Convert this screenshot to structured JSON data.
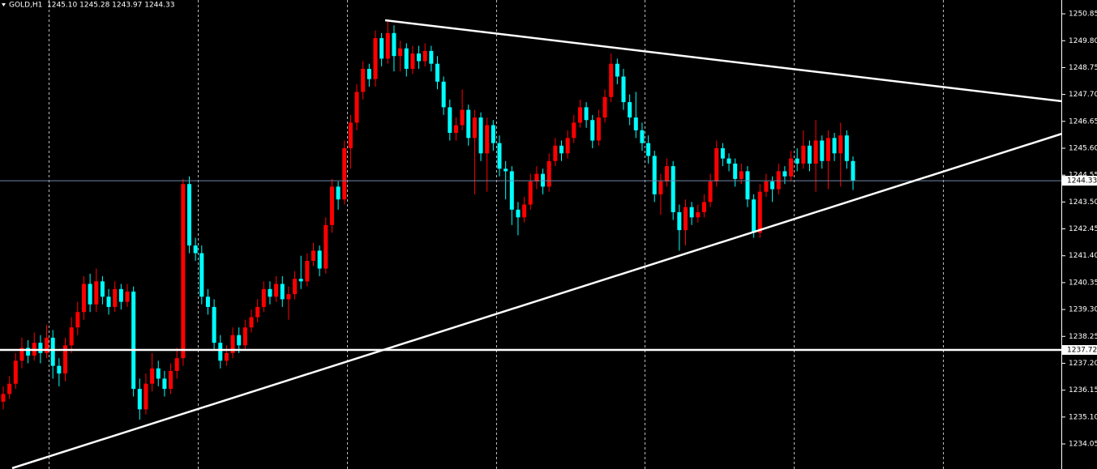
{
  "chart_data": {
    "type": "candlestick",
    "symbol": "GOLD,H1",
    "header_values": "1245.10 1245.28 1243.97 1244.33",
    "up_color": "#ff0000",
    "down_color": "#00ffff",
    "ylim": [
      1233.07,
      1251.39
    ],
    "yticks": [
      1250.85,
      {
        "value": 1249.8,
        "label": "1249.80"
      },
      1248.75,
      {
        "value": 1247.7,
        "label": "1247.70"
      },
      1246.65,
      {
        "value": 1245.6,
        "label": "1245.60"
      },
      1244.55,
      {
        "value": 1243.5,
        "label": "1243.50"
      },
      1242.45,
      {
        "value": 1241.4,
        "label": "1241.40"
      },
      1240.35,
      {
        "value": 1239.3,
        "label": "1239.30"
      },
      1238.25,
      {
        "value": 1237.2,
        "label": "1237.20"
      },
      1236.15,
      {
        "value": 1235.1,
        "label": "1235.10"
      },
      1234.05
    ],
    "current_price": 1244.33,
    "level": 1237.72,
    "ohlc": [
      [
        1235.7,
        1236.3,
        1235.4,
        1236.0
      ],
      [
        1236.0,
        1236.7,
        1235.8,
        1236.4
      ],
      [
        1236.4,
        1237.6,
        1236.2,
        1237.3
      ],
      [
        1237.3,
        1238.2,
        1237.0,
        1237.8
      ],
      [
        1237.8,
        1238.1,
        1237.2,
        1237.5
      ],
      [
        1237.5,
        1238.4,
        1237.3,
        1238.0
      ],
      [
        1238.0,
        1238.3,
        1237.2,
        1237.6
      ],
      [
        1237.6,
        1238.7,
        1237.4,
        1238.2
      ],
      [
        1238.2,
        1238.5,
        1236.6,
        1237.1
      ],
      [
        1237.1,
        1237.4,
        1236.3,
        1236.8
      ],
      [
        1236.8,
        1238.2,
        1236.5,
        1237.9
      ],
      [
        1237.9,
        1239.0,
        1237.6,
        1238.6
      ],
      [
        1238.6,
        1239.6,
        1238.3,
        1239.2
      ],
      [
        1239.2,
        1240.6,
        1238.9,
        1240.3
      ],
      [
        1240.3,
        1240.7,
        1239.2,
        1239.5
      ],
      [
        1239.5,
        1240.9,
        1239.2,
        1240.4
      ],
      [
        1240.4,
        1240.6,
        1239.5,
        1239.8
      ],
      [
        1239.8,
        1240.1,
        1239.1,
        1239.4
      ],
      [
        1239.4,
        1240.4,
        1239.2,
        1240.1
      ],
      [
        1240.1,
        1240.3,
        1239.3,
        1239.6
      ],
      [
        1239.6,
        1240.3,
        1239.4,
        1240.0
      ],
      [
        1240.0,
        1240.2,
        1235.9,
        1236.2
      ],
      [
        1236.2,
        1236.6,
        1235.0,
        1235.4
      ],
      [
        1235.4,
        1236.8,
        1235.2,
        1236.4
      ],
      [
        1236.4,
        1237.6,
        1236.1,
        1237.0
      ],
      [
        1237.0,
        1237.3,
        1236.3,
        1236.6
      ],
      [
        1236.6,
        1236.9,
        1235.9,
        1236.2
      ],
      [
        1236.2,
        1237.2,
        1236.0,
        1236.9
      ],
      [
        1236.9,
        1237.8,
        1236.6,
        1237.4
      ],
      [
        1237.4,
        1244.4,
        1237.1,
        1244.2
      ],
      [
        1244.2,
        1244.5,
        1241.5,
        1241.8
      ],
      [
        1241.8,
        1242.1,
        1241.2,
        1241.5
      ],
      [
        1241.5,
        1241.8,
        1239.5,
        1239.8
      ],
      [
        1239.8,
        1240.1,
        1239.1,
        1239.4
      ],
      [
        1239.4,
        1239.7,
        1237.7,
        1238.0
      ],
      [
        1238.0,
        1238.3,
        1237.0,
        1237.3
      ],
      [
        1237.3,
        1237.9,
        1237.1,
        1237.6
      ],
      [
        1237.6,
        1238.6,
        1237.4,
        1238.3
      ],
      [
        1238.3,
        1238.6,
        1237.6,
        1237.9
      ],
      [
        1237.9,
        1238.9,
        1237.7,
        1238.6
      ],
      [
        1238.6,
        1239.3,
        1238.4,
        1239.0
      ],
      [
        1239.0,
        1239.7,
        1238.8,
        1239.4
      ],
      [
        1239.4,
        1240.4,
        1239.2,
        1240.1
      ],
      [
        1240.1,
        1240.4,
        1239.5,
        1239.8
      ],
      [
        1239.8,
        1240.6,
        1239.6,
        1240.3
      ],
      [
        1240.3,
        1240.6,
        1239.4,
        1239.7
      ],
      [
        1239.7,
        1240.2,
        1238.9,
        1239.9
      ],
      [
        1239.9,
        1240.8,
        1239.7,
        1240.5
      ],
      [
        1240.5,
        1241.4,
        1240.1,
        1240.4
      ],
      [
        1240.4,
        1241.5,
        1240.2,
        1241.2
      ],
      [
        1241.2,
        1241.9,
        1241.0,
        1241.6
      ],
      [
        1241.6,
        1241.8,
        1240.6,
        1240.9
      ],
      [
        1240.9,
        1242.9,
        1240.7,
        1242.6
      ],
      [
        1242.6,
        1244.4,
        1242.3,
        1244.1
      ],
      [
        1244.1,
        1244.3,
        1243.2,
        1243.6
      ],
      [
        1243.6,
        1245.9,
        1243.4,
        1245.6
      ],
      [
        1245.6,
        1246.9,
        1244.8,
        1246.6
      ],
      [
        1246.6,
        1248.1,
        1246.3,
        1247.8
      ],
      [
        1247.8,
        1249.0,
        1247.5,
        1248.7
      ],
      [
        1248.7,
        1248.9,
        1248.0,
        1248.3
      ],
      [
        1248.3,
        1250.2,
        1248.0,
        1249.9
      ],
      [
        1249.9,
        1250.1,
        1248.8,
        1249.1
      ],
      [
        1249.1,
        1250.6,
        1248.9,
        1250.1
      ],
      [
        1250.1,
        1250.4,
        1248.6,
        1249.2
      ],
      [
        1249.2,
        1249.8,
        1248.6,
        1249.5
      ],
      [
        1249.5,
        1249.7,
        1248.4,
        1248.7
      ],
      [
        1248.7,
        1249.6,
        1248.5,
        1249.3
      ],
      [
        1249.3,
        1249.6,
        1248.7,
        1249.0
      ],
      [
        1249.0,
        1249.7,
        1248.8,
        1249.4
      ],
      [
        1249.4,
        1249.6,
        1248.6,
        1248.9
      ],
      [
        1248.9,
        1249.2,
        1247.9,
        1248.2
      ],
      [
        1248.2,
        1248.4,
        1246.9,
        1247.2
      ],
      [
        1247.2,
        1247.5,
        1245.9,
        1246.2
      ],
      [
        1246.2,
        1246.8,
        1245.9,
        1246.5
      ],
      [
        1246.5,
        1247.9,
        1246.3,
        1247.1
      ],
      [
        1247.1,
        1247.3,
        1245.7,
        1246.0
      ],
      [
        1246.0,
        1247.1,
        1243.8,
        1246.8
      ],
      [
        1246.8,
        1247.0,
        1245.1,
        1245.4
      ],
      [
        1245.4,
        1246.8,
        1243.9,
        1246.5
      ],
      [
        1246.5,
        1246.7,
        1245.5,
        1245.8
      ],
      [
        1245.8,
        1246.1,
        1244.5,
        1244.8
      ],
      [
        1244.8,
        1245.1,
        1243.6,
        1244.7
      ],
      [
        1244.7,
        1244.9,
        1242.6,
        1243.2
      ],
      [
        1243.2,
        1243.5,
        1242.2,
        1242.9
      ],
      [
        1242.9,
        1243.7,
        1242.7,
        1243.4
      ],
      [
        1243.4,
        1244.6,
        1243.2,
        1244.3
      ],
      [
        1244.3,
        1244.9,
        1244.0,
        1244.6
      ],
      [
        1244.6,
        1244.8,
        1243.8,
        1244.1
      ],
      [
        1244.1,
        1245.4,
        1243.9,
        1245.1
      ],
      [
        1245.1,
        1246.0,
        1244.9,
        1245.7
      ],
      [
        1245.7,
        1245.9,
        1245.1,
        1245.4
      ],
      [
        1245.4,
        1246.3,
        1245.2,
        1246.0
      ],
      [
        1246.0,
        1246.9,
        1245.8,
        1246.6
      ],
      [
        1246.6,
        1247.5,
        1246.4,
        1247.2
      ],
      [
        1247.2,
        1247.4,
        1246.4,
        1246.7
      ],
      [
        1246.7,
        1246.9,
        1245.6,
        1245.9
      ],
      [
        1245.9,
        1247.1,
        1245.7,
        1246.8
      ],
      [
        1246.8,
        1247.9,
        1246.6,
        1247.6
      ],
      [
        1247.6,
        1249.3,
        1247.4,
        1248.9
      ],
      [
        1248.9,
        1249.1,
        1248.1,
        1248.4
      ],
      [
        1248.4,
        1248.7,
        1247.1,
        1247.4
      ],
      [
        1247.4,
        1247.7,
        1246.5,
        1246.8
      ],
      [
        1246.8,
        1247.8,
        1246.0,
        1246.3
      ],
      [
        1246.3,
        1246.6,
        1245.5,
        1245.8
      ],
      [
        1245.8,
        1246.1,
        1245.0,
        1245.3
      ],
      [
        1245.3,
        1245.5,
        1243.5,
        1243.8
      ],
      [
        1243.8,
        1244.6,
        1243.0,
        1244.3
      ],
      [
        1244.3,
        1245.2,
        1244.1,
        1244.9
      ],
      [
        1244.9,
        1245.1,
        1242.8,
        1243.1
      ],
      [
        1243.1,
        1243.4,
        1241.6,
        1242.4
      ],
      [
        1242.4,
        1243.6,
        1241.8,
        1243.3
      ],
      [
        1243.3,
        1243.5,
        1242.6,
        1242.9
      ],
      [
        1242.9,
        1243.4,
        1242.7,
        1243.1
      ],
      [
        1243.1,
        1243.8,
        1242.9,
        1243.5
      ],
      [
        1243.5,
        1244.6,
        1243.3,
        1244.3
      ],
      [
        1244.3,
        1245.9,
        1244.1,
        1245.6
      ],
      [
        1245.6,
        1245.8,
        1244.9,
        1245.2
      ],
      [
        1245.2,
        1245.4,
        1244.7,
        1245.0
      ],
      [
        1245.0,
        1245.2,
        1244.1,
        1244.4
      ],
      [
        1244.4,
        1245.0,
        1244.2,
        1244.7
      ],
      [
        1244.7,
        1244.9,
        1243.3,
        1243.6
      ],
      [
        1243.6,
        1243.8,
        1242.1,
        1242.3
      ],
      [
        1242.3,
        1244.2,
        1242.1,
        1243.9
      ],
      [
        1243.9,
        1244.6,
        1243.7,
        1244.3
      ],
      [
        1244.3,
        1244.5,
        1243.5,
        1244.0
      ],
      [
        1244.0,
        1245.0,
        1243.8,
        1244.7
      ],
      [
        1244.7,
        1244.9,
        1244.2,
        1244.5
      ],
      [
        1244.5,
        1245.5,
        1244.3,
        1245.2
      ],
      [
        1245.2,
        1245.6,
        1244.7,
        1245.0
      ],
      [
        1245.0,
        1246.3,
        1244.8,
        1245.7
      ],
      [
        1245.7,
        1245.9,
        1244.7,
        1245.0
      ],
      [
        1245.0,
        1246.7,
        1243.9,
        1245.9
      ],
      [
        1245.9,
        1246.1,
        1244.8,
        1245.1
      ],
      [
        1245.1,
        1246.3,
        1244.0,
        1246.0
      ],
      [
        1246.0,
        1246.2,
        1245.1,
        1245.4
      ],
      [
        1245.4,
        1246.6,
        1244.1,
        1246.1
      ],
      [
        1246.1,
        1246.3,
        1244.8,
        1245.1
      ],
      [
        1245.1,
        1245.28,
        1243.97,
        1244.33
      ]
    ]
  }
}
